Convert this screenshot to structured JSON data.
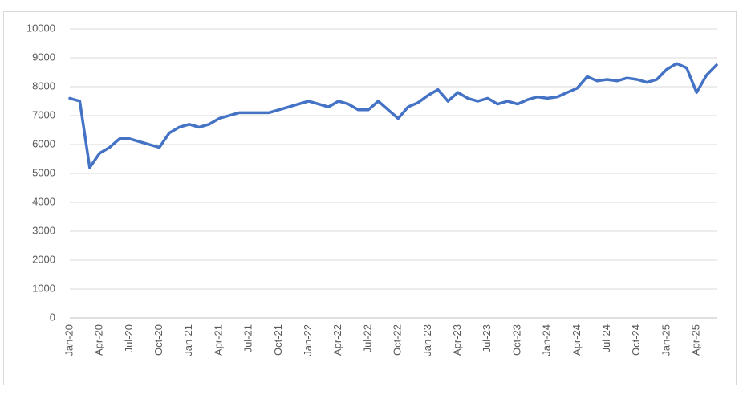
{
  "chart_data": {
    "type": "line",
    "categories": [
      "Jan-20",
      null,
      null,
      "Apr-20",
      null,
      null,
      "Jul-20",
      null,
      null,
      "Oct-20",
      null,
      null,
      "Jan-21",
      null,
      null,
      "Apr-21",
      null,
      null,
      "Jul-21",
      null,
      null,
      "Oct-21",
      null,
      null,
      "Jan-22",
      null,
      null,
      "Apr-22",
      null,
      null,
      "Jul-22",
      null,
      null,
      "Oct-22",
      null,
      null,
      "Jan-23",
      null,
      null,
      "Apr-23",
      null,
      null,
      "Jul-23",
      null,
      null,
      "Oct-23",
      null,
      null,
      "Jan-24",
      null,
      null,
      "Apr-24",
      null,
      null,
      "Jul-24",
      null,
      null,
      "Oct-24",
      null,
      null,
      "Jan-25",
      null,
      null,
      "Apr-25",
      null,
      null
    ],
    "values": [
      7600,
      7500,
      5200,
      5700,
      5900,
      6200,
      6200,
      6100,
      6000,
      5900,
      6400,
      6600,
      6700,
      6600,
      6700,
      6900,
      7000,
      7100,
      7100,
      7100,
      7100,
      7200,
      7300,
      7400,
      7500,
      7400,
      7300,
      7500,
      7400,
      7200,
      7200,
      7500,
      7200,
      6900,
      7300,
      7450,
      7700,
      7900,
      7500,
      7800,
      7600,
      7500,
      7600,
      7400,
      7500,
      7400,
      7550,
      7650,
      7600,
      7650,
      7800,
      7950,
      8350,
      8200,
      8250,
      8200,
      8300,
      8250,
      8150,
      8250,
      8600,
      8800,
      8650,
      7800,
      8400,
      8750
    ],
    "color": "#4472c4",
    "ylim": [
      0,
      10000
    ],
    "yticks": [
      0,
      1000,
      2000,
      3000,
      4000,
      5000,
      6000,
      7000,
      8000,
      9000,
      10000
    ],
    "grid": true
  }
}
